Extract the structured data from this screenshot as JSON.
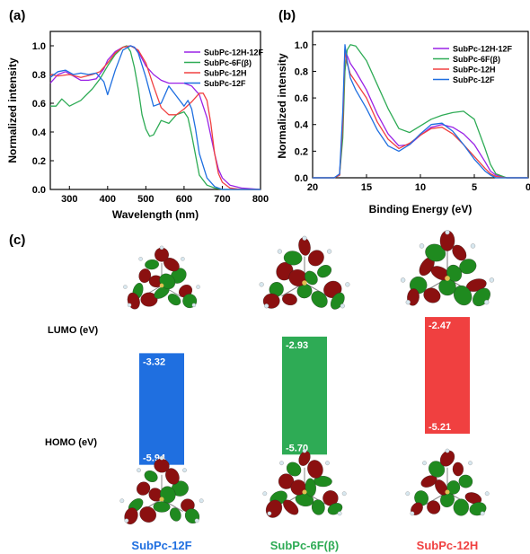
{
  "panel_labels": {
    "a": "(a)",
    "b": "(b)",
    "c": "(c)"
  },
  "colors": {
    "purple": "#9a22e6",
    "green": "#2eab55",
    "red": "#f04040",
    "blue": "#1f6fe0",
    "lobe_red": "#8b1010",
    "lobe_green": "#1f8a1f"
  },
  "chart_data": [
    {
      "type": "line",
      "panel": "(a)",
      "xlabel": "Wavelength (nm)",
      "ylabel": "Normalized intensity",
      "xlim": [
        250,
        800
      ],
      "ylim": [
        0,
        1.1
      ],
      "xticks": [
        300,
        400,
        500,
        600,
        700,
        800
      ],
      "yticks": [
        0.0,
        0.2,
        0.4,
        0.6,
        0.8,
        1.0
      ],
      "legend_position": "top-right",
      "series": [
        {
          "name": "SubPc-12H-12F",
          "color": "#9a22e6",
          "x": [
            250,
            270,
            290,
            310,
            330,
            350,
            370,
            390,
            400,
            420,
            440,
            460,
            470,
            480,
            500,
            520,
            540,
            560,
            580,
            600,
            620,
            640,
            660,
            680,
            690,
            700,
            720,
            750,
            800
          ],
          "y": [
            0.74,
            0.8,
            0.82,
            0.79,
            0.76,
            0.76,
            0.77,
            0.84,
            0.9,
            0.96,
            0.99,
            1.0,
            0.99,
            0.96,
            0.86,
            0.8,
            0.76,
            0.74,
            0.74,
            0.74,
            0.72,
            0.66,
            0.5,
            0.25,
            0.14,
            0.08,
            0.03,
            0.01,
            0.0
          ]
        },
        {
          "name": "SubPc-6F(β)",
          "color": "#2eab55",
          "x": [
            250,
            265,
            280,
            300,
            330,
            360,
            380,
            400,
            420,
            440,
            450,
            460,
            470,
            480,
            490,
            500,
            510,
            520,
            540,
            560,
            580,
            600,
            610,
            620,
            640,
            660,
            680,
            700,
            750,
            800
          ],
          "y": [
            0.58,
            0.58,
            0.63,
            0.58,
            0.62,
            0.7,
            0.77,
            0.86,
            0.94,
            0.99,
            1.0,
            0.96,
            0.85,
            0.7,
            0.52,
            0.42,
            0.37,
            0.38,
            0.48,
            0.46,
            0.52,
            0.54,
            0.5,
            0.38,
            0.1,
            0.03,
            0.01,
            0.0,
            0.0,
            0.0
          ]
        },
        {
          "name": "SubPc-12H",
          "color": "#f04040",
          "x": [
            250,
            270,
            300,
            330,
            360,
            380,
            400,
            420,
            440,
            460,
            480,
            500,
            520,
            540,
            560,
            580,
            600,
            620,
            640,
            650,
            660,
            670,
            680,
            690,
            700,
            720,
            750,
            800
          ],
          "y": [
            0.8,
            0.79,
            0.8,
            0.78,
            0.8,
            0.82,
            0.88,
            0.95,
            0.99,
            1.0,
            0.97,
            0.88,
            0.72,
            0.57,
            0.52,
            0.52,
            0.56,
            0.61,
            0.67,
            0.67,
            0.62,
            0.46,
            0.25,
            0.11,
            0.05,
            0.01,
            0.0,
            0.0
          ]
        },
        {
          "name": "SubPc-12F",
          "color": "#1f6fe0",
          "x": [
            250,
            270,
            290,
            310,
            330,
            350,
            370,
            390,
            400,
            420,
            440,
            460,
            470,
            480,
            500,
            520,
            540,
            560,
            580,
            600,
            610,
            620,
            630,
            640,
            660,
            680,
            700,
            800
          ],
          "y": [
            0.78,
            0.82,
            0.83,
            0.8,
            0.81,
            0.8,
            0.81,
            0.75,
            0.66,
            0.83,
            0.97,
            1.0,
            0.99,
            0.95,
            0.78,
            0.58,
            0.6,
            0.72,
            0.65,
            0.58,
            0.62,
            0.56,
            0.42,
            0.25,
            0.08,
            0.02,
            0.0,
            0.0
          ]
        }
      ]
    },
    {
      "type": "line",
      "panel": "(b)",
      "xlabel": "Binding Energy (eV)",
      "ylabel": "Normalized intensity",
      "xlim": [
        20,
        0
      ],
      "ylim": [
        0,
        1.1
      ],
      "xticks": [
        20,
        15,
        10,
        5,
        0
      ],
      "yticks": [
        0.0,
        0.2,
        0.4,
        0.6,
        0.8,
        1.0
      ],
      "legend_position": "top-right",
      "series": [
        {
          "name": "SubPc-12H-12F",
          "color": "#9a22e6",
          "x": [
            20,
            18,
            17.5,
            17.2,
            17.0,
            16.8,
            16.5,
            16.0,
            15.0,
            14.0,
            13.0,
            12.0,
            11.0,
            10.0,
            9.0,
            8.0,
            7.0,
            6.0,
            5.0,
            4.0,
            3.5,
            3.0,
            2.0,
            0
          ],
          "y": [
            0.0,
            0.0,
            0.02,
            0.4,
            0.97,
            0.92,
            0.86,
            0.8,
            0.66,
            0.48,
            0.33,
            0.24,
            0.25,
            0.32,
            0.38,
            0.4,
            0.38,
            0.33,
            0.25,
            0.12,
            0.05,
            0.02,
            0.0,
            0.0
          ]
        },
        {
          "name": "SubPc-6F(β)",
          "color": "#2eab55",
          "x": [
            20,
            18,
            17.5,
            17.2,
            17.0,
            16.8,
            16.5,
            16.0,
            15.0,
            14.0,
            13.0,
            12.0,
            11.0,
            10.0,
            9.0,
            8.0,
            7.0,
            6.0,
            5.0,
            4.0,
            3.5,
            3.0,
            2.0,
            0
          ],
          "y": [
            0.0,
            0.0,
            0.02,
            0.3,
            0.8,
            0.96,
            1.0,
            0.99,
            0.88,
            0.7,
            0.52,
            0.37,
            0.34,
            0.39,
            0.44,
            0.47,
            0.49,
            0.5,
            0.44,
            0.22,
            0.1,
            0.03,
            0.0,
            0.0
          ]
        },
        {
          "name": "SubPc-12H",
          "color": "#f04040",
          "x": [
            20,
            18,
            17.5,
            17.2,
            17.0,
            16.8,
            16.5,
            16.0,
            15.0,
            14.0,
            13.0,
            12.0,
            11.0,
            10.0,
            9.0,
            8.0,
            7.0,
            6.0,
            5.0,
            4.0,
            3.5,
            3.0,
            2.0,
            0
          ],
          "y": [
            0.0,
            0.0,
            0.02,
            0.4,
            0.96,
            0.86,
            0.78,
            0.72,
            0.6,
            0.42,
            0.29,
            0.22,
            0.26,
            0.32,
            0.37,
            0.38,
            0.33,
            0.25,
            0.16,
            0.07,
            0.03,
            0.01,
            0.0,
            0.0
          ]
        },
        {
          "name": "SubPc-12F",
          "color": "#1f6fe0",
          "x": [
            20,
            18,
            17.5,
            17.2,
            17.0,
            16.8,
            16.5,
            16.0,
            15.0,
            14.0,
            13.0,
            12.0,
            11.0,
            10.0,
            9.0,
            8.0,
            7.0,
            6.0,
            5.0,
            4.0,
            3.5,
            3.0,
            2.0,
            0
          ],
          "y": [
            0.0,
            0.0,
            0.03,
            0.5,
            1.0,
            0.88,
            0.75,
            0.66,
            0.52,
            0.36,
            0.24,
            0.2,
            0.25,
            0.33,
            0.4,
            0.41,
            0.35,
            0.25,
            0.14,
            0.05,
            0.02,
            0.0,
            0.0,
            0.0
          ]
        }
      ]
    },
    {
      "type": "bar",
      "panel": "(c)",
      "ylabel_top": "LUMO (eV)",
      "ylabel_bottom": "HOMO (eV)",
      "categories": [
        "SubPc-12F",
        "SubPc-6F(β)",
        "SubPc-12H"
      ],
      "series": [
        {
          "name": "LUMO",
          "values": [
            -3.32,
            -2.93,
            -2.47
          ]
        },
        {
          "name": "HOMO",
          "values": [
            -5.94,
            -5.7,
            -5.21
          ]
        }
      ],
      "lumo_labels": [
        "-3.32",
        "-2.93",
        "-2.47"
      ],
      "homo_labels": [
        "-5.94",
        "-5.70",
        "-5.21"
      ],
      "colors": [
        "#1f6fe0",
        "#2eab55",
        "#f04040"
      ],
      "ylim": [
        -6.2,
        -2.3
      ]
    }
  ]
}
